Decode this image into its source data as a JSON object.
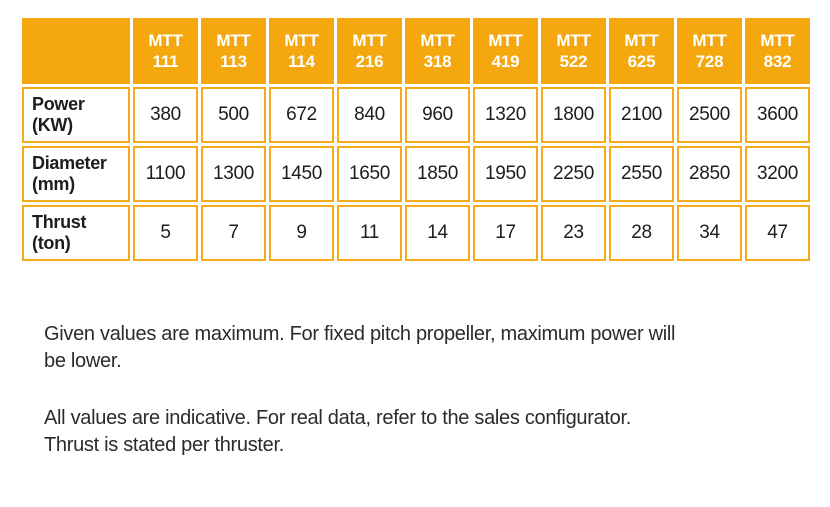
{
  "colors": {
    "accent_orange": "#F5A80E",
    "cell_border_orange": "#F6AB1A",
    "table_text": "#1D1D1B",
    "note_text": "#2B2B2B",
    "header_text": "#FFFFFF"
  },
  "table": {
    "columns": [
      {
        "line1": "MTT",
        "line2": "111"
      },
      {
        "line1": "MTT",
        "line2": "113"
      },
      {
        "line1": "MTT",
        "line2": "114"
      },
      {
        "line1": "MTT",
        "line2": "216"
      },
      {
        "line1": "MTT",
        "line2": "318"
      },
      {
        "line1": "MTT",
        "line2": "419"
      },
      {
        "line1": "MTT",
        "line2": "522"
      },
      {
        "line1": "MTT",
        "line2": "625"
      },
      {
        "line1": "MTT",
        "line2": "728"
      },
      {
        "line1": "MTT",
        "line2": "832"
      }
    ],
    "rows": [
      {
        "label": {
          "line1": "Power",
          "line2": "(KW)"
        },
        "values": [
          380,
          500,
          672,
          840,
          960,
          1320,
          1800,
          2100,
          2500,
          3600
        ]
      },
      {
        "label": {
          "line1": "Diameter",
          "line2": "(mm)"
        },
        "values": [
          1100,
          1300,
          1450,
          1650,
          1850,
          1950,
          2250,
          2550,
          2850,
          3200
        ]
      },
      {
        "label": {
          "line1": "Thrust",
          "line2": "(ton)"
        },
        "values": [
          5,
          7,
          9,
          11,
          14,
          17,
          23,
          28,
          34,
          47
        ]
      }
    ]
  },
  "notes": [
    {
      "lines": [
        "Given values are maximum. For fixed pitch propeller, maximum power will",
        "be lower."
      ]
    },
    {
      "lines": [
        "All values are indicative. For real data, refer to the sales configurator.",
        "Thrust is stated per thruster."
      ]
    }
  ]
}
